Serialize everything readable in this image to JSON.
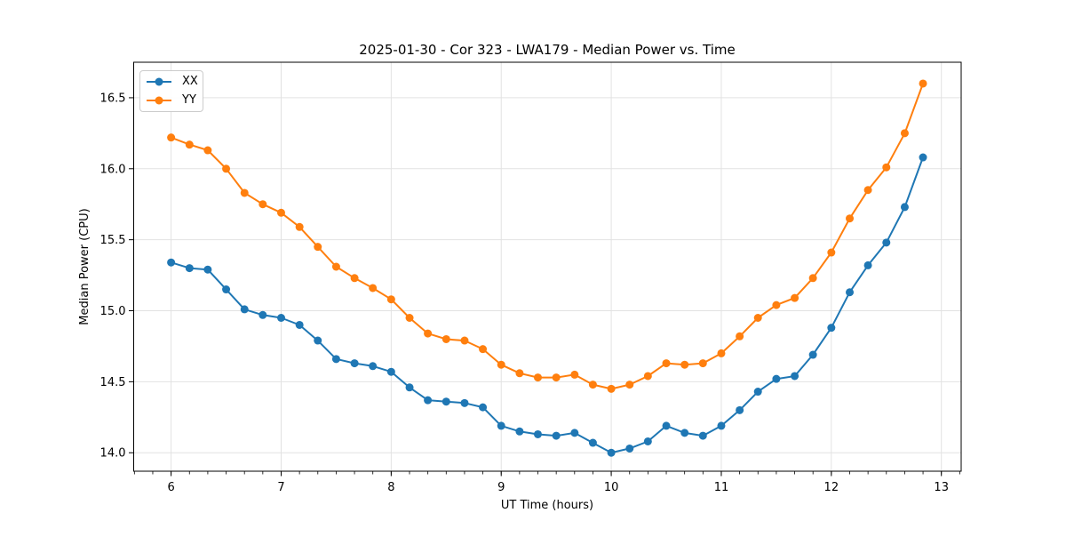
{
  "figure": {
    "title": "2025-01-30 - Cor 323 - LWA179 - Median Power vs. Time"
  },
  "chart_data": {
    "type": "line",
    "title": "2025-01-30 - Cor 323 - LWA179 - Median Power vs. Time",
    "xlabel": "UT Time (hours)",
    "ylabel": "Median Power (CPU)",
    "xlim": [
      5.66,
      13.18
    ],
    "ylim": [
      13.87,
      16.75
    ],
    "x_ticks": [
      6,
      7,
      8,
      9,
      10,
      11,
      12,
      13
    ],
    "x_tick_labels": [
      "6",
      "7",
      "8",
      "9",
      "10",
      "11",
      "12",
      "13"
    ],
    "x_minor_tick_step": 0.166667,
    "y_ticks": [
      14.0,
      14.5,
      15.0,
      15.5,
      16.0,
      16.5
    ],
    "y_tick_labels": [
      "14.0",
      "14.5",
      "15.0",
      "15.5",
      "16.0",
      "16.5"
    ],
    "grid": true,
    "grid_color": "#e2e2e2",
    "legend_position": "upper left",
    "marker": "circle",
    "x": [
      6.0,
      6.167,
      6.333,
      6.5,
      6.667,
      6.833,
      7.0,
      7.167,
      7.333,
      7.5,
      7.667,
      7.833,
      8.0,
      8.167,
      8.333,
      8.5,
      8.667,
      8.833,
      9.0,
      9.167,
      9.333,
      9.5,
      9.667,
      9.833,
      10.0,
      10.167,
      10.333,
      10.5,
      10.667,
      10.833,
      11.0,
      11.167,
      11.333,
      11.5,
      11.667,
      11.833,
      12.0,
      12.167,
      12.333,
      12.5,
      12.667,
      12.833
    ],
    "series": [
      {
        "name": "XX",
        "color": "#1f77b4",
        "values": [
          15.34,
          15.3,
          15.29,
          15.15,
          15.01,
          14.97,
          14.95,
          14.9,
          14.79,
          14.66,
          14.63,
          14.61,
          14.57,
          14.46,
          14.37,
          14.36,
          14.35,
          14.32,
          14.19,
          14.15,
          14.13,
          14.12,
          14.14,
          14.07,
          14.0,
          14.03,
          14.08,
          14.19,
          14.14,
          14.12,
          14.19,
          14.3,
          14.43,
          14.52,
          14.54,
          14.69,
          14.88,
          15.13,
          15.32,
          15.48,
          15.73,
          16.08
        ]
      },
      {
        "name": "YY",
        "color": "#ff7f0e",
        "values": [
          16.22,
          16.17,
          16.13,
          16.0,
          15.83,
          15.75,
          15.69,
          15.59,
          15.45,
          15.31,
          15.23,
          15.16,
          15.08,
          14.95,
          14.84,
          14.8,
          14.79,
          14.73,
          14.62,
          14.56,
          14.53,
          14.53,
          14.55,
          14.48,
          14.45,
          14.48,
          14.54,
          14.63,
          14.62,
          14.63,
          14.7,
          14.82,
          14.95,
          15.04,
          15.09,
          15.23,
          15.41,
          15.65,
          15.85,
          16.01,
          16.25,
          16.6
        ]
      }
    ]
  }
}
